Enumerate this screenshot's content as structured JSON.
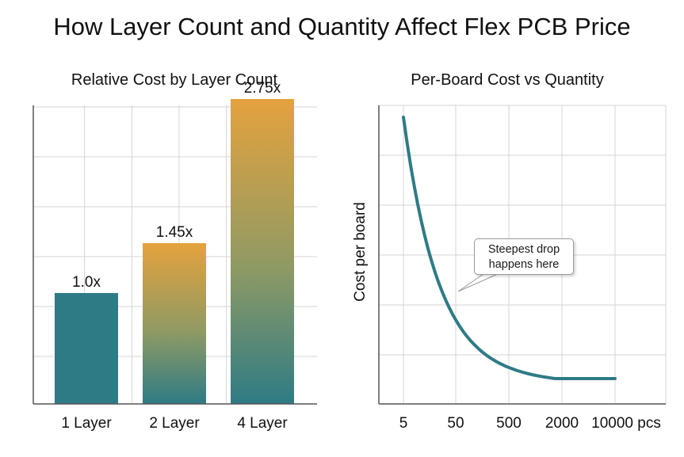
{
  "title": "How Layer Count and Quantity Affect Flex PCB Price",
  "colors": {
    "teal": "#2e7b85",
    "orange": "#e5a23e",
    "grid": "#d4d4d4",
    "axis": "#555555"
  },
  "chart_data": [
    {
      "type": "bar",
      "title": "Relative Cost by Layer Count",
      "categories": [
        "1 Layer",
        "2 Layer",
        "4 Layer"
      ],
      "values": [
        1.0,
        1.45,
        2.75
      ],
      "value_labels": [
        "1.0x",
        "1.45x",
        "2.75x"
      ],
      "xlabel": "",
      "ylabel": "",
      "ylim": [
        0,
        3.0
      ],
      "grid": true,
      "fill": "gradient orange (top) to teal (bottom); 1 Layer solid teal"
    },
    {
      "type": "line",
      "title": "Per-Board Cost vs Quantity",
      "xlabel": "",
      "x_ticks": [
        "5",
        "50",
        "500",
        "2000",
        "10000 pcs"
      ],
      "x": [
        5,
        50,
        500,
        2000,
        10000
      ],
      "ylabel": "Cost per board",
      "y_ticks_shown": false,
      "grid": true,
      "series": [
        {
          "values": [
            100,
            35,
            8,
            5,
            4
          ]
        }
      ],
      "annotation": {
        "line1": "Steepest drop",
        "line2": "happens here"
      }
    }
  ]
}
